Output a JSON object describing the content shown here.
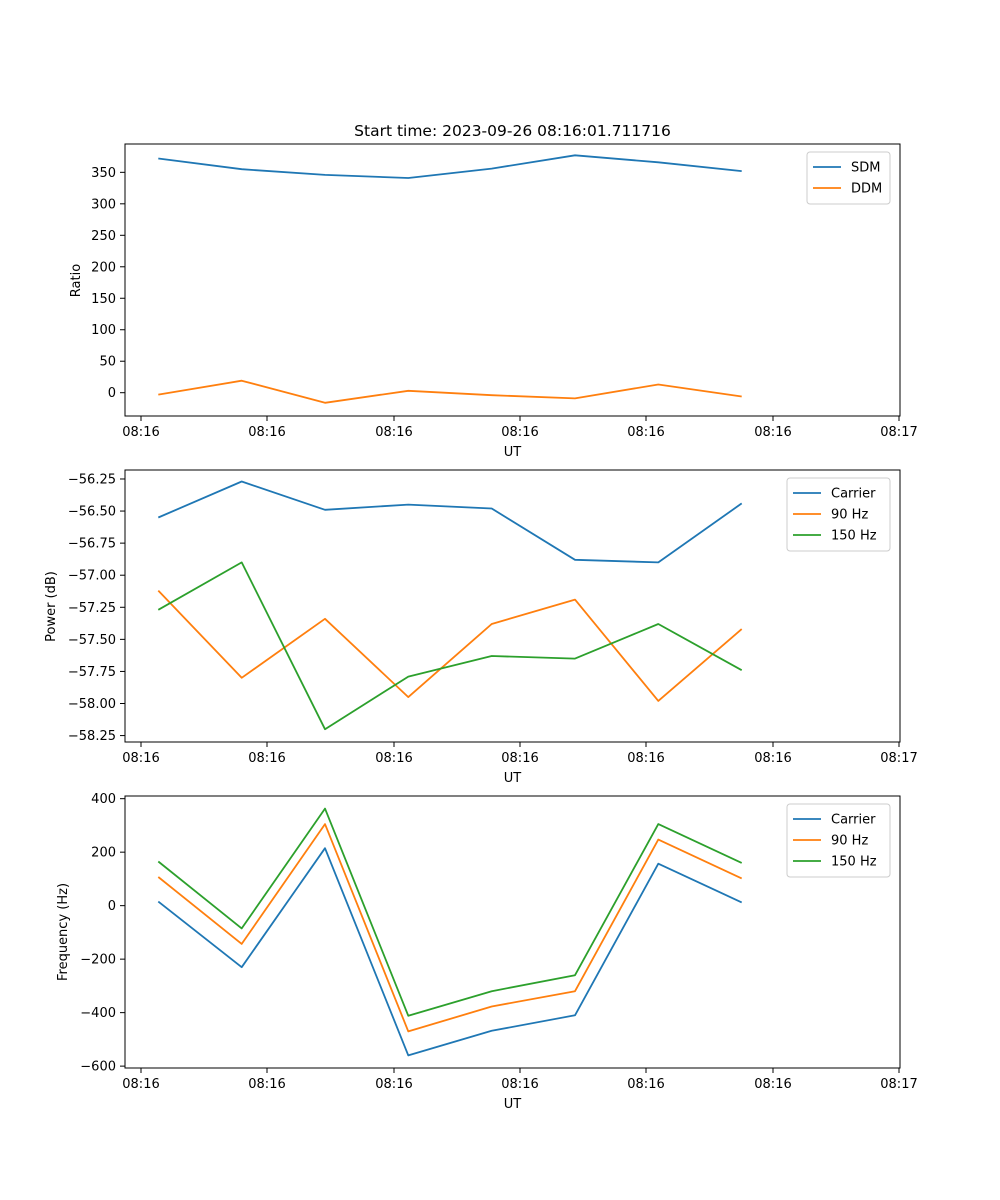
{
  "figure": {
    "title": "Start time: 2023-09-26 08:16:01.711716"
  },
  "chart_data": [
    {
      "type": "line",
      "title": "Start time: 2023-09-26 08:16:01.711716",
      "xlabel": "UT",
      "ylabel": "Ratio",
      "x_tick_labels": [
        "08:16",
        "08:16",
        "08:16",
        "08:16",
        "08:16",
        "08:16",
        "08:17"
      ],
      "xlim": [
        -0.4,
        8.9
      ],
      "x": [
        0,
        1,
        2,
        3,
        4,
        5,
        6,
        7
      ],
      "ylim": [
        -37,
        395
      ],
      "yticks": [
        0,
        50,
        100,
        150,
        200,
        250,
        300,
        350
      ],
      "legend": "top-right",
      "series": [
        {
          "name": "SDM",
          "color": "#1f77b4",
          "values": [
            372,
            355,
            346,
            341,
            356,
            377,
            366,
            352
          ]
        },
        {
          "name": "DDM",
          "color": "#ff7f0e",
          "values": [
            -3,
            19,
            -16,
            3,
            -4,
            -9,
            13,
            -6
          ]
        }
      ]
    },
    {
      "type": "line",
      "xlabel": "UT",
      "ylabel": "Power (dB)",
      "x_tick_labels": [
        "08:16",
        "08:16",
        "08:16",
        "08:16",
        "08:16",
        "08:16",
        "08:17"
      ],
      "xlim": [
        -0.4,
        8.9
      ],
      "x": [
        0,
        1,
        2,
        3,
        4,
        5,
        6,
        7
      ],
      "ylim": [
        -58.3,
        -56.18
      ],
      "yticks": [
        -58.25,
        -58.0,
        -57.75,
        -57.5,
        -57.25,
        -57.0,
        -56.75,
        -56.5,
        -56.25
      ],
      "ytick_labels": [
        "−58.25",
        "−58.00",
        "−57.75",
        "−57.50",
        "−57.25",
        "−57.00",
        "−56.75",
        "−56.50",
        "−56.25"
      ],
      "legend": "top-right",
      "series": [
        {
          "name": "Carrier",
          "color": "#1f77b4",
          "values": [
            -56.55,
            -56.27,
            -56.49,
            -56.45,
            -56.48,
            -56.88,
            -56.9,
            -56.44
          ]
        },
        {
          "name": "90 Hz",
          "color": "#ff7f0e",
          "values": [
            -57.12,
            -57.8,
            -57.34,
            -57.95,
            -57.38,
            -57.19,
            -57.98,
            -57.42
          ]
        },
        {
          "name": "150 Hz",
          "color": "#2ca02c",
          "values": [
            -57.27,
            -56.9,
            -58.2,
            -57.79,
            -57.63,
            -57.65,
            -57.38,
            -57.74
          ]
        }
      ]
    },
    {
      "type": "line",
      "xlabel": "UT",
      "ylabel": "Frequency (Hz)",
      "x_tick_labels": [
        "08:16",
        "08:16",
        "08:16",
        "08:16",
        "08:16",
        "08:16",
        "08:17"
      ],
      "xlim": [
        -0.4,
        8.9
      ],
      "x": [
        0,
        1,
        2,
        3,
        4,
        5,
        6,
        7
      ],
      "ylim": [
        -607,
        410
      ],
      "yticks": [
        -600,
        -400,
        -200,
        0,
        200,
        400
      ],
      "ytick_labels": [
        "−600",
        "−400",
        "−200",
        "0",
        "200",
        "400"
      ],
      "legend": "top-right",
      "series": [
        {
          "name": "Carrier",
          "color": "#1f77b4",
          "values": [
            15,
            -230,
            215,
            -560,
            -468,
            -410,
            157,
            12
          ]
        },
        {
          "name": "90 Hz",
          "color": "#ff7f0e",
          "values": [
            107,
            -143,
            305,
            -470,
            -377,
            -320,
            247,
            102
          ]
        },
        {
          "name": "150 Hz",
          "color": "#2ca02c",
          "values": [
            165,
            -85,
            363,
            -412,
            -320,
            -260,
            305,
            160
          ]
        }
      ]
    }
  ]
}
